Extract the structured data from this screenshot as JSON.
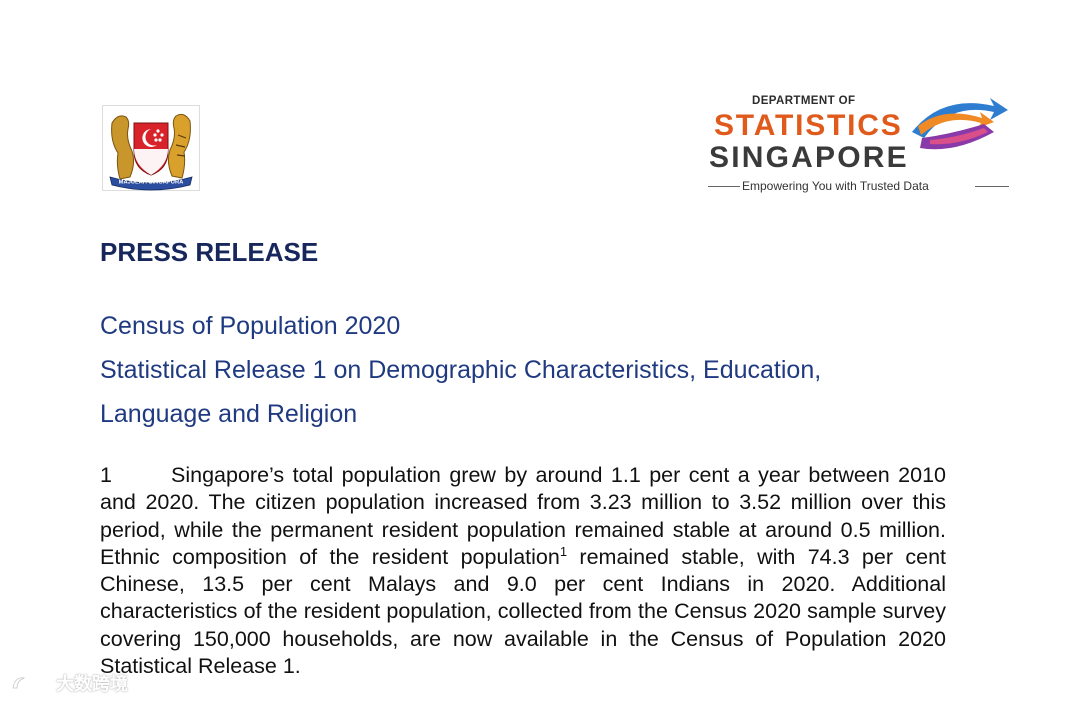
{
  "crest": {
    "motto": "MAJULAH SINGAPURA"
  },
  "logo": {
    "dept": "DEPARTMENT OF",
    "statistics": "STATISTICS",
    "singapore": "SINGAPORE",
    "tagline": "Empowering You with Trusted Data",
    "colors": {
      "statistics": "#e05a1c",
      "singapore": "#3a3a3a",
      "swoosh_orange": "#f08a24",
      "swoosh_purple": "#8a3aa8",
      "swoosh_blue": "#2e7dd1"
    }
  },
  "header": {
    "press_release": "PRESS RELEASE",
    "title_line1": "Census of Population 2020",
    "title_line2": "Statistical Release 1 on Demographic Characteristics, Education,",
    "title_line3": "Language and Religion"
  },
  "paragraph1": {
    "number": "1",
    "text_before_footnote": "Singapore’s total population grew by around 1.1 per cent a year between 2010 and 2020. The citizen population increased from 3.23 million to 3.52 million over this period, while the permanent resident population remained stable at around 0.5 million. Ethnic composition of the resident population",
    "footnote_mark": "1",
    "text_after_footnote": " remained stable, with 74.3 per cent Chinese, 13.5 per cent Malays and 9.0 per cent Indians in 2020. Additional characteristics of the resident population, collected from the Census 2020 sample survey covering 150,000 households, are now available in the Census of Population 2020 Statistical Release 1."
  },
  "watermark": {
    "text": "大数跨境"
  },
  "colors": {
    "press_release": "#17275c",
    "subtitle": "#1f3a80"
  }
}
